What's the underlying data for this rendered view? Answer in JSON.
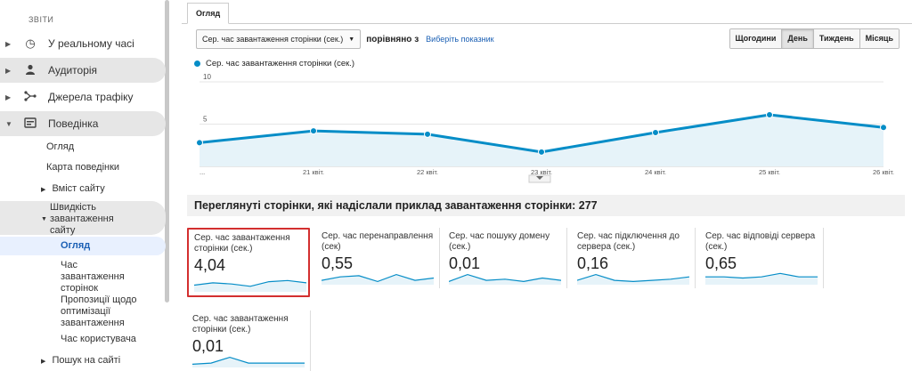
{
  "sidebar": {
    "section_label": "звіти",
    "items": [
      {
        "label": "У реальному часі",
        "icon": "clock-icon"
      },
      {
        "label": "Аудиторія",
        "icon": "person-icon"
      },
      {
        "label": "Джерела трафіку",
        "icon": "acquisition-icon"
      },
      {
        "label": "Поведінка",
        "icon": "behavior-icon"
      }
    ],
    "behavior_sub": {
      "overview": "Огляд",
      "behavior_map": "Карта поведінки",
      "site_content": "Вміст сайту",
      "site_speed": "Швидкість завантаження сайту",
      "speed_overview": "Огляд",
      "page_timings": "Час завантаження сторінок",
      "speed_suggestions": "Пропозиції щодо оптимізації завантаження",
      "user_timings": "Час користувача",
      "site_search": "Пошук на сайті"
    }
  },
  "tab": {
    "label": "Огляд"
  },
  "toolbar": {
    "metric_select": "Сер. час завантаження сторінки (сек.)",
    "compare_label": "порівняно з",
    "pick_metric": "Виберіть показник",
    "periods": [
      "Щогодини",
      "День",
      "Тиждень",
      "Місяць"
    ],
    "active_period": "День"
  },
  "chart_data": {
    "type": "line",
    "series": [
      {
        "name": "Сер. час завантаження сторінки (сек.)",
        "values": [
          2.8,
          4.2,
          3.8,
          1.7,
          4.0,
          6.1,
          4.6
        ]
      }
    ],
    "x_ticks": [
      "...",
      "21 квіт.",
      "22 квіт.",
      "23 квіт.",
      "24 квіт.",
      "25 квіт.",
      "26 квіт."
    ],
    "y_ticks": [
      10,
      5
    ],
    "ylim": [
      0,
      10
    ],
    "color": "#058dc7",
    "fill": "#e6f3f9"
  },
  "summary": "Переглянуті сторінки, які надіслали приклад завантаження сторінки: 277",
  "cards": [
    {
      "title": "Сер. час завантаження сторінки (сек.)",
      "value": "4,04",
      "spark": [
        5,
        7,
        6,
        4,
        8,
        9,
        7
      ]
    },
    {
      "title": "Сер. час перенаправлення (сек)",
      "value": "0,55",
      "spark": [
        3,
        6,
        7,
        2,
        8,
        3,
        5
      ]
    },
    {
      "title": "Сер. час пошуку домену (сек.)",
      "value": "0,01",
      "spark": [
        2,
        8,
        3,
        4,
        2,
        5,
        3
      ]
    },
    {
      "title": "Сер. час підключення до сервера (сек.)",
      "value": "0,16",
      "spark": [
        3,
        8,
        3,
        2,
        3,
        4,
        6
      ]
    },
    {
      "title": "Сер. час відповіді сервера (сек.)",
      "value": "0,65",
      "spark": [
        6,
        6,
        5,
        6,
        9,
        6,
        6
      ]
    },
    {
      "title": "Сер. час завантаження сторінки (сек.)",
      "value": "0,01",
      "spark": [
        2,
        3,
        8,
        3,
        3,
        3,
        3
      ]
    }
  ]
}
